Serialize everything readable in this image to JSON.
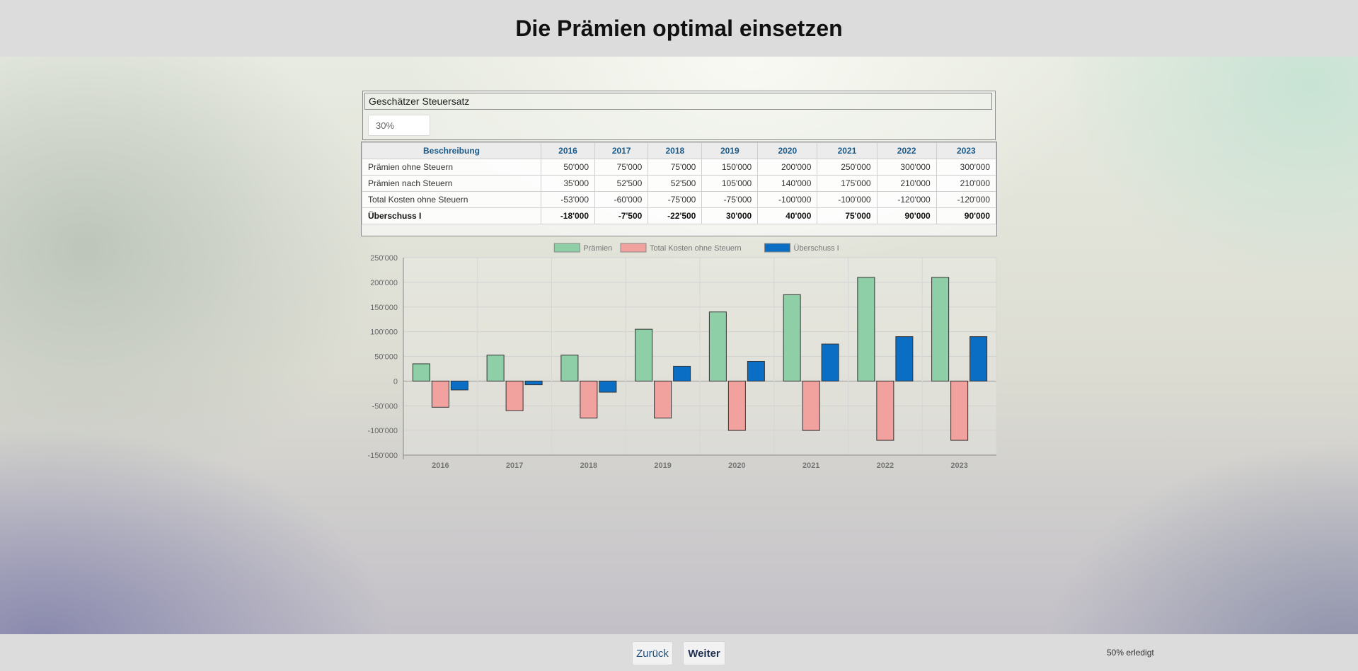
{
  "header": {
    "title": "Die Prämien optimal einsetzen"
  },
  "tax": {
    "label": "Geschätzer Steuersatz",
    "value": "30%"
  },
  "table": {
    "columns": [
      "Beschreibung",
      "2016",
      "2017",
      "2018",
      "2019",
      "2020",
      "2021",
      "2022",
      "2023"
    ],
    "rows": [
      {
        "label": "Prämien ohne Steuern",
        "values": [
          "50'000",
          "75'000",
          "75'000",
          "150'000",
          "200'000",
          "250'000",
          "300'000",
          "300'000"
        ]
      },
      {
        "label": "Prämien nach Steuern",
        "values": [
          "35'000",
          "52'500",
          "52'500",
          "105'000",
          "140'000",
          "175'000",
          "210'000",
          "210'000"
        ]
      },
      {
        "label": "Total Kosten ohne Steuern",
        "values": [
          "-53'000",
          "-60'000",
          "-75'000",
          "-75'000",
          "-100'000",
          "-100'000",
          "-120'000",
          "-120'000"
        ]
      },
      {
        "label": "Überschuss I",
        "values": [
          "-18'000",
          "-7'500",
          "-22'500",
          "30'000",
          "40'000",
          "75'000",
          "90'000",
          "90'000"
        ],
        "bold": true
      }
    ]
  },
  "chart_data": {
    "type": "bar",
    "title": "",
    "xlabel": "",
    "ylabel": "",
    "categories": [
      "2016",
      "2017",
      "2018",
      "2019",
      "2020",
      "2021",
      "2022",
      "2023"
    ],
    "series": [
      {
        "name": "Prämien",
        "color": "#8fcfa8",
        "values": [
          35000,
          52500,
          52500,
          105000,
          140000,
          175000,
          210000,
          210000
        ]
      },
      {
        "name": "Total Kosten ohne Steuern",
        "color": "#f2a29e",
        "values": [
          -53000,
          -60000,
          -75000,
          -75000,
          -100000,
          -100000,
          -120000,
          -120000
        ]
      },
      {
        "name": "Überschuss I",
        "color": "#0a6ec4",
        "values": [
          -18000,
          -7500,
          -22500,
          30000,
          40000,
          75000,
          90000,
          90000
        ]
      }
    ],
    "ylim": [
      -150000,
      250000
    ],
    "yticks": [
      250000,
      200000,
      150000,
      100000,
      50000,
      0,
      -50000,
      -100000,
      -150000
    ],
    "ytick_labels": [
      "250'000",
      "200'000",
      "150'000",
      "100'000",
      "50'000",
      "0",
      "-50'000",
      "-100'000",
      "-150'000"
    ],
    "grid": true,
    "legend": "top-center"
  },
  "footer": {
    "back_label": "Zurück",
    "next_label": "Weiter",
    "progress": "50% erledigt"
  }
}
